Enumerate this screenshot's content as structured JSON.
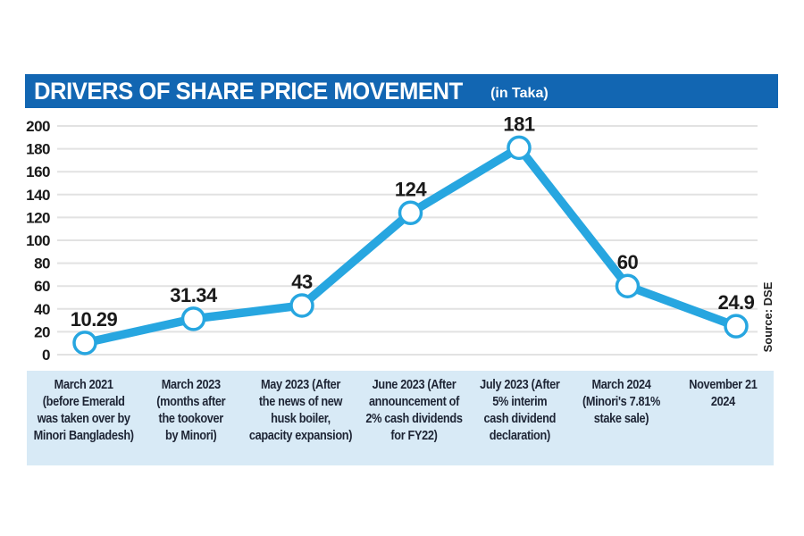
{
  "header": {
    "title": "DRIVERS OF SHARE PRICE MOVEMENT",
    "subtitle": "(in Taka)"
  },
  "source_label": "Source: DSE",
  "chart_data": {
    "type": "line",
    "title": "DRIVERS OF SHARE PRICE MOVEMENT",
    "unit": "Taka",
    "categories": [
      "March 2021\n(before Emerald\nwas taken over by\nMinori Bangladesh)",
      "March 2023\n(months after\nthe tookover\nby Minori)",
      "May 2023 (After\nthe news of new\nhusk boiler,\ncapacity expansion)",
      "June 2023 (After\nannouncement of\n2% cash dividends\nfor FY22)",
      "July 2023 (After\n5% interim\ncash dividend\ndeclaration)",
      "March 2024\n(Minori's 7.81%\nstake sale)",
      "November 21\n2024"
    ],
    "values": [
      10.29,
      31.34,
      43,
      124,
      181,
      60,
      24.9
    ],
    "ylim": [
      0,
      200
    ],
    "y_tick_step": 20,
    "grid": true,
    "legend": "none",
    "colors": {
      "header_bg": "#1266b2",
      "line": "#27a6e0",
      "marker_fill": "#ffffff",
      "band_bg": "#d8eaf6",
      "grid": "#e2e2e2",
      "text": "#1a1a1a"
    }
  }
}
